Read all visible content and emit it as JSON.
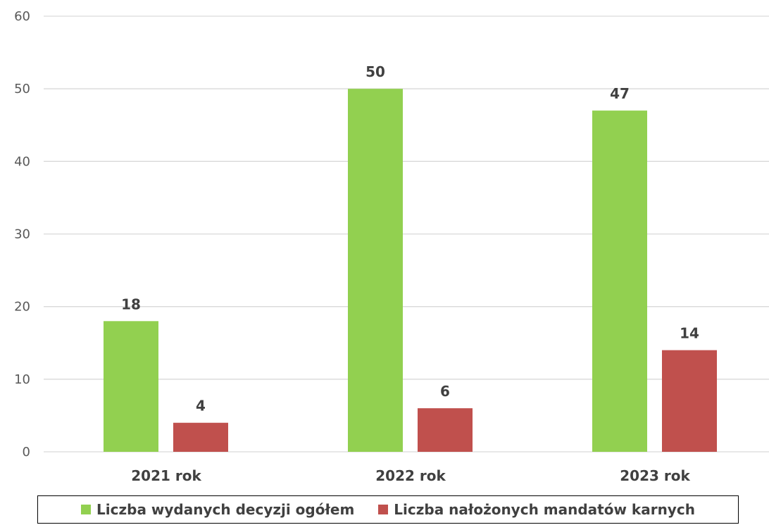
{
  "chart_data": {
    "type": "bar",
    "title": "",
    "xlabel": "",
    "ylabel": "",
    "categories": [
      "2021 rok",
      "2022 rok",
      "2023 rok"
    ],
    "ylim": [
      0,
      60
    ],
    "yticks": [
      0,
      10,
      20,
      30,
      40,
      50,
      60
    ],
    "grid": true,
    "legend_position": "bottom",
    "series": [
      {
        "name": "Liczba wydanych decyzji ogółem",
        "values": [
          18,
          50,
          47
        ],
        "color": "#92d050"
      },
      {
        "name": "Liczba nałożonych mandatów karnych",
        "values": [
          4,
          6,
          14
        ],
        "color": "#c0504d"
      }
    ]
  }
}
